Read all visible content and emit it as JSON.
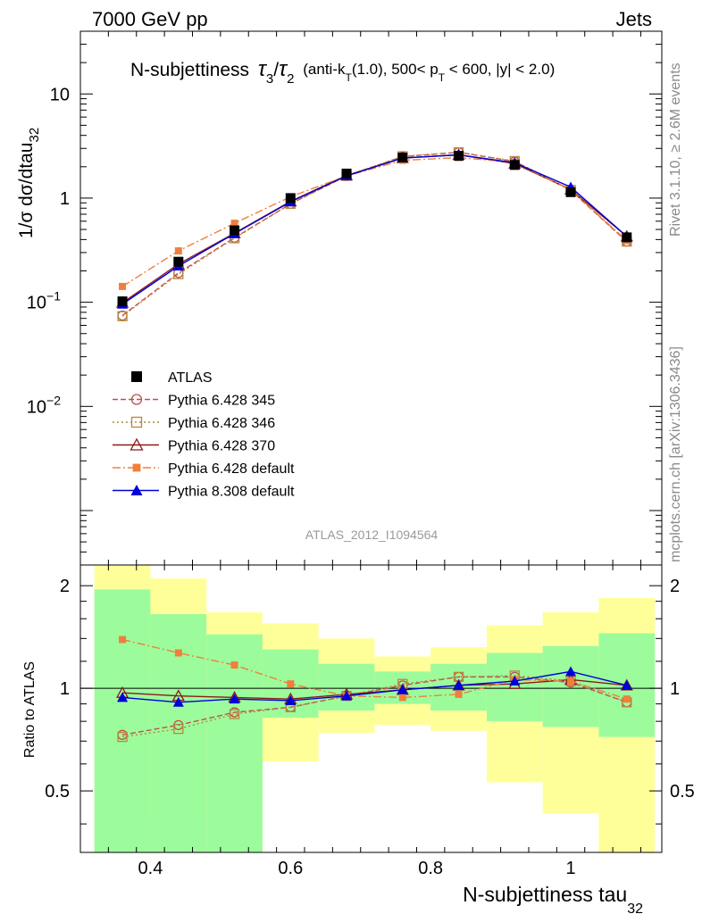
{
  "header": {
    "left": "7000 GeV pp",
    "right": "Jets"
  },
  "side_labels": {
    "rivet": "Rivet 3.1.10, ≥ 2.6M events",
    "mcplots": "mcplots.cern.ch [arXiv:1306.3436]"
  },
  "watermark": "ATLAS_2012_I1094564",
  "chart_data": {
    "type": "line",
    "title": {
      "main": "N-subjettiness",
      "tau": "τ",
      "sub3": "3",
      "slash": "/",
      "sub2": "2",
      "details_a": "(anti-k",
      "sub_t": "T",
      "details_b": "(1.0), 500< p",
      "details_c": " < 600, |y| < 2.0)"
    },
    "xlabel": "N-subjettiness tau",
    "xlabel_sub": "32",
    "ylabel": "1/σ dσ/dtau",
    "ylabel_sub": "32",
    "ratio_ylabel": "Ratio to ATLAS",
    "xlim": [
      0.3,
      1.13
    ],
    "ylim_main": [
      0.0003,
      40
    ],
    "yscale_main": "log",
    "ylim_ratio": [
      0.33,
      2.3
    ],
    "yscale_ratio": "log",
    "x_ticks": [
      "0.4",
      "0.6",
      "0.8",
      "1"
    ],
    "main_y_ticks": [
      {
        "v": 10,
        "base": "10",
        "exp": ""
      },
      {
        "v": 1,
        "base": "1",
        "exp": ""
      },
      {
        "v": 0.1,
        "base": "10",
        "exp": "−1"
      },
      {
        "v": 0.01,
        "base": "10",
        "exp": "−2"
      }
    ],
    "ratio_y_ticks": [
      "2",
      "1",
      "0.5"
    ],
    "bins": [
      {
        "lo": 0.32,
        "hi": 0.4,
        "x": 0.36,
        "data": 0.102,
        "inner": [
          0.33,
          1.95
        ],
        "outer": [
          0.33,
          2.3
        ]
      },
      {
        "lo": 0.4,
        "hi": 0.48,
        "x": 0.44,
        "data": 0.245,
        "inner": [
          0.33,
          1.65
        ],
        "outer": [
          0.43,
          2.1
        ]
      },
      {
        "lo": 0.48,
        "hi": 0.56,
        "x": 0.52,
        "data": 0.49,
        "inner": [
          0.33,
          1.44
        ],
        "outer": [
          0.36,
          1.67
        ]
      },
      {
        "lo": 0.56,
        "hi": 0.64,
        "x": 0.6,
        "data": 1.0,
        "inner": [
          0.82,
          1.3
        ],
        "outer": [
          0.61,
          1.55
        ]
      },
      {
        "lo": 0.64,
        "hi": 0.72,
        "x": 0.68,
        "data": 1.72,
        "inner": [
          0.86,
          1.18
        ],
        "outer": [
          0.74,
          1.4
        ]
      },
      {
        "lo": 0.72,
        "hi": 0.8,
        "x": 0.76,
        "data": 2.45,
        "inner": [
          0.9,
          1.12
        ],
        "outer": [
          0.78,
          1.24
        ]
      },
      {
        "lo": 0.8,
        "hi": 0.88,
        "x": 0.84,
        "data": 2.55,
        "inner": [
          0.86,
          1.18
        ],
        "outer": [
          0.75,
          1.32
        ]
      },
      {
        "lo": 0.88,
        "hi": 0.96,
        "x": 0.92,
        "data": 2.08,
        "inner": [
          0.8,
          1.27
        ],
        "outer": [
          0.53,
          1.53
        ]
      },
      {
        "lo": 0.96,
        "hi": 1.04,
        "x": 1.0,
        "data": 1.14,
        "inner": [
          0.77,
          1.33
        ],
        "outer": [
          0.43,
          1.67
        ]
      },
      {
        "lo": 1.04,
        "hi": 1.12,
        "x": 1.08,
        "data": 0.42,
        "inner": [
          0.72,
          1.45
        ],
        "outer": [
          0.33,
          1.84
        ]
      }
    ],
    "data_series": {
      "name": "ATLAS",
      "color": "#000000",
      "marker": "square"
    },
    "series": [
      {
        "name": "Pythia 6.428 345",
        "color": "#c0504d",
        "dash": "6,3",
        "marker": "circle-open",
        "ratio": [
          0.73,
          0.78,
          0.85,
          0.88,
          0.95,
          1.02,
          1.08,
          1.08,
          1.04,
          0.91
        ]
      },
      {
        "name": "Pythia 6.428 346",
        "color": "#b8863b",
        "dash": "2,3",
        "marker": "square-open",
        "ratio": [
          0.72,
          0.76,
          0.84,
          0.88,
          0.95,
          1.03,
          1.08,
          1.09,
          1.05,
          0.91
        ]
      },
      {
        "name": "Pythia 6.428 370",
        "color": "#8b1a1a",
        "dash": "",
        "marker": "triangle-open",
        "ratio": [
          0.97,
          0.95,
          0.94,
          0.93,
          0.96,
          0.99,
          1.02,
          1.03,
          1.06,
          1.02
        ]
      },
      {
        "name": "Pythia 6.428 default",
        "color": "#f07f3c",
        "dash": "9,3,2,3",
        "marker": "square-filled",
        "ratio": [
          1.39,
          1.27,
          1.17,
          1.03,
          0.95,
          0.94,
          0.96,
          1.06,
          1.05,
          0.93
        ]
      },
      {
        "name": "Pythia 8.308 default",
        "color": "#0000d8",
        "dash": "",
        "marker": "triangle-filled",
        "ratio": [
          0.94,
          0.91,
          0.93,
          0.92,
          0.95,
          0.99,
          1.02,
          1.05,
          1.12,
          1.02
        ]
      }
    ],
    "band_colors": {
      "inner": "#9cfc9c",
      "outer": "#ffff99"
    },
    "legend_position": "lower-left"
  }
}
